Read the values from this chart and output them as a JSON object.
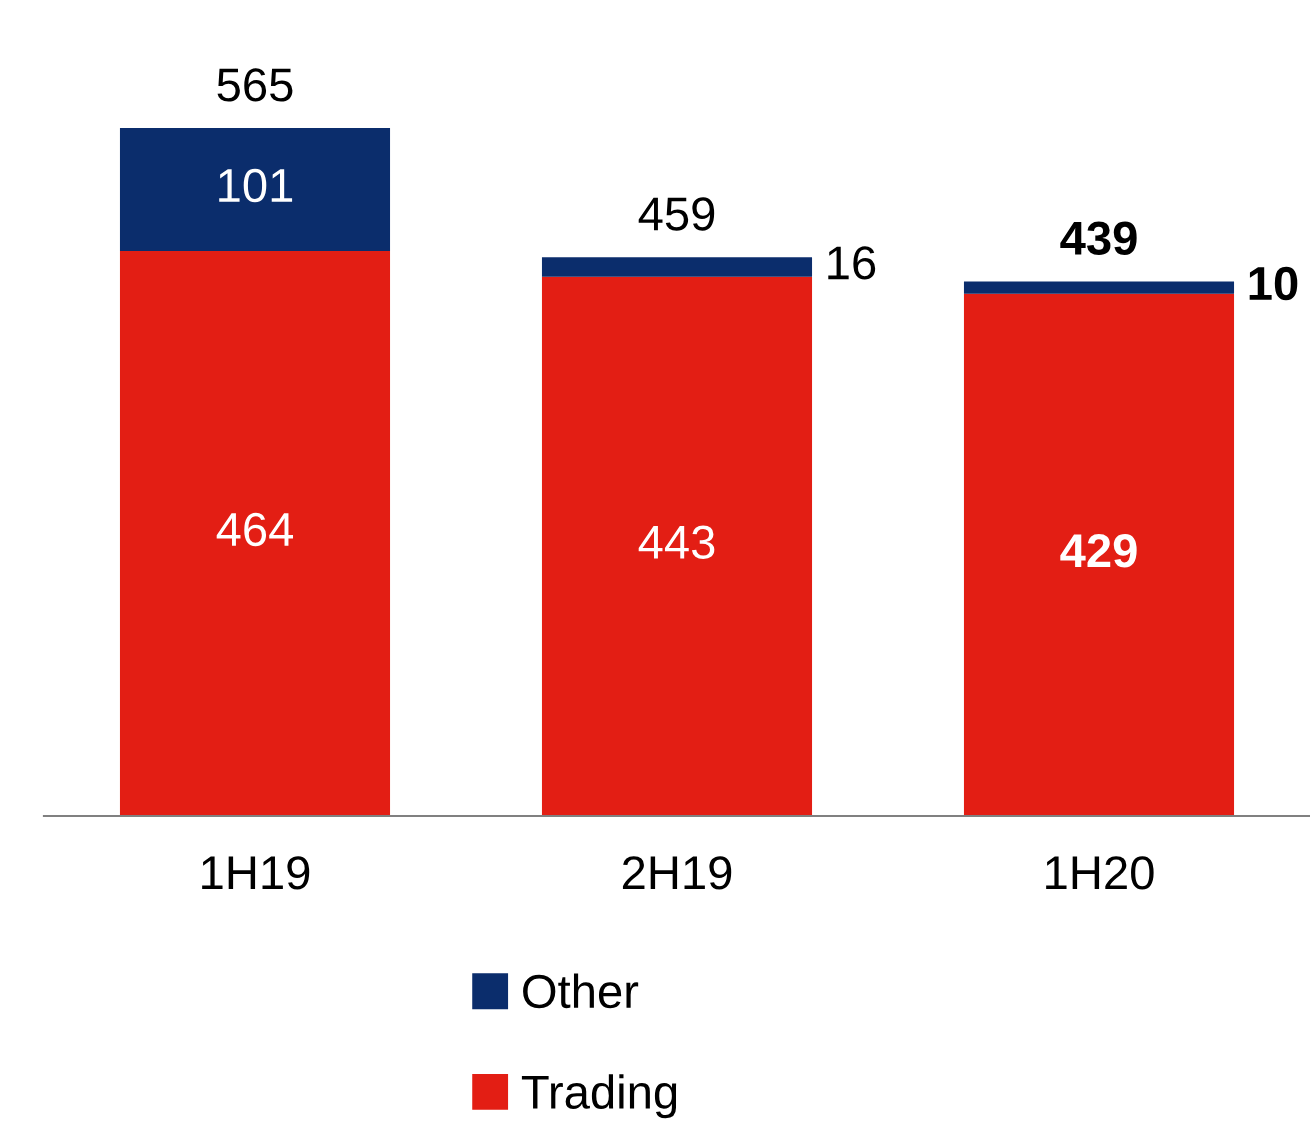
{
  "chart_data": {
    "type": "bar",
    "stacked": true,
    "categories": [
      "1H19",
      "2H19",
      "1H20"
    ],
    "series": [
      {
        "name": "Trading",
        "color": "#e31e14",
        "values": [
          464,
          443,
          429
        ]
      },
      {
        "name": "Other",
        "color": "#0b2d6c",
        "values": [
          101,
          16,
          10
        ]
      }
    ],
    "totals": [
      "565",
      "459",
      "439"
    ],
    "data_labels": true,
    "legend": "bottom",
    "grid": false
  }
}
